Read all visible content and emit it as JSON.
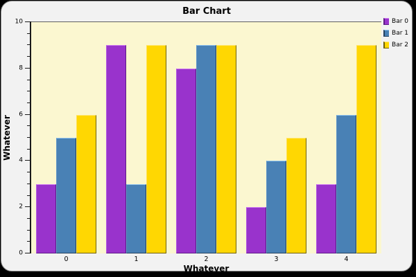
{
  "window": {
    "panel_bg": "#f2f2f2",
    "frame_color": "#000000",
    "panel_border": "#8a8a8a"
  },
  "chart_data": {
    "type": "bar",
    "title": "Bar Chart",
    "xlabel": "Whatever",
    "ylabel": "Whatever",
    "categories": [
      "0",
      "1",
      "2",
      "3",
      "4"
    ],
    "series": [
      {
        "name": "Bar 0",
        "values": [
          3,
          9,
          8,
          2,
          3
        ],
        "color": "#9933cc",
        "highlight": "#cf7df2",
        "midlight": "#b35ce0",
        "shadow": "#5e1a87"
      },
      {
        "name": "Bar 1",
        "values": [
          5,
          3,
          9,
          4,
          6
        ],
        "color": "#4981b5",
        "highlight": "#8fc3ef",
        "midlight": "#6598c8",
        "shadow": "#24425f"
      },
      {
        "name": "Bar 2",
        "values": [
          6,
          9,
          9,
          5,
          9
        ],
        "color": "#ffd702",
        "highlight": "#ffe878",
        "midlight": "#ffe25c",
        "shadow": "#6e6000"
      }
    ],
    "ylim": [
      0,
      10
    ],
    "y_major_step": 2,
    "y_minor_step": 0.5,
    "y_tick_labels": [
      "0",
      "2",
      "4",
      "6",
      "8",
      "10"
    ],
    "grid": false,
    "legend_position": "top-right",
    "plot_bg": "#fbf7d0"
  }
}
